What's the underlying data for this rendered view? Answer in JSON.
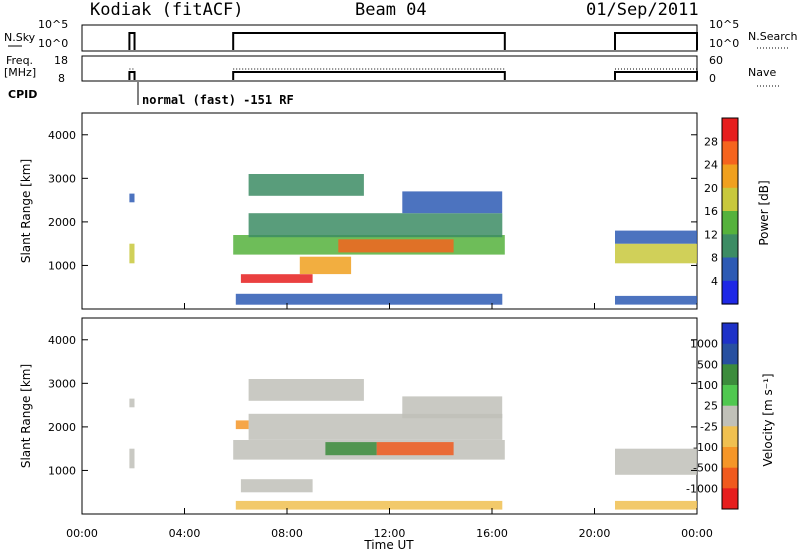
{
  "header": {
    "station": "Kodiak (fitACF)",
    "beam": "Beam 04",
    "date": "01/Sep/2011"
  },
  "panels": {
    "nsky": {
      "left_label": "N.Sky",
      "left_top": "10^5",
      "left_bottom": "10^0",
      "right_top": "10^5",
      "right_bottom": "10^0",
      "right_label": "N.Search"
    },
    "freq": {
      "left_label_1": "Freq.",
      "left_label_2": "[MHz]",
      "left_top": "18",
      "left_bottom": "8",
      "right_top": "60",
      "right_bottom": "0",
      "right_label": "Nave"
    },
    "cpid": {
      "label": "CPID",
      "mode": "normal (fast) -151 RF"
    }
  },
  "chart_data": [
    {
      "type": "heatmap",
      "name": "power",
      "ylabel": "Slant Range [km]",
      "xlabel": "",
      "ylim": [
        0,
        4500
      ],
      "yticks": [
        "1000",
        "2000",
        "3000",
        "4000"
      ],
      "x_hours": [
        0,
        24
      ],
      "colorbar_label": "Power [dB]",
      "colorbar_ticks": [
        "4",
        "8",
        "12",
        "16",
        "20",
        "24",
        "28"
      ],
      "colors": [
        "#1e28e6",
        "#2d5ab4",
        "#3c8c64",
        "#55b23c",
        "#c8c83c",
        "#f0a01e",
        "#f5641e",
        "#e61e1e"
      ],
      "features": [
        {
          "t0": 1.85,
          "t1": 2.05,
          "r0": 1050,
          "r1": 1500,
          "level": 4
        },
        {
          "t0": 1.85,
          "t1": 2.05,
          "r0": 2450,
          "r1": 2650,
          "level": 1
        },
        {
          "t0": 5.9,
          "t1": 16.5,
          "r0": 1250,
          "r1": 1700,
          "level": 3
        },
        {
          "t0": 6.2,
          "t1": 9.0,
          "r0": 600,
          "r1": 800,
          "level": 7
        },
        {
          "t0": 8.5,
          "t1": 10.5,
          "r0": 800,
          "r1": 1200,
          "level": 5
        },
        {
          "t0": 10.0,
          "t1": 14.5,
          "r0": 1300,
          "r1": 1600,
          "level": 6
        },
        {
          "t0": 6.5,
          "t1": 16.4,
          "r0": 1650,
          "r1": 2200,
          "level": 2
        },
        {
          "t0": 6.5,
          "t1": 11.0,
          "r0": 2600,
          "r1": 3100,
          "level": 2
        },
        {
          "t0": 12.5,
          "t1": 16.4,
          "r0": 2200,
          "r1": 2700,
          "level": 1
        },
        {
          "t0": 20.8,
          "t1": 24.0,
          "r0": 1050,
          "r1": 1500,
          "level": 4
        },
        {
          "t0": 20.8,
          "t1": 24.0,
          "r0": 1500,
          "r1": 1800,
          "level": 1
        },
        {
          "t0": 6.0,
          "t1": 16.4,
          "r0": 100,
          "r1": 350,
          "level": 1
        },
        {
          "t0": 20.8,
          "t1": 24.0,
          "r0": 100,
          "r1": 300,
          "level": 1
        }
      ]
    },
    {
      "type": "heatmap",
      "name": "velocity",
      "ylabel": "Slant Range [km]",
      "xlabel": "Time UT",
      "ylim": [
        0,
        4500
      ],
      "yticks": [
        "1000",
        "2000",
        "3000",
        "4000"
      ],
      "xticks": [
        "00:00",
        "04:00",
        "08:00",
        "12:00",
        "16:00",
        "20:00",
        "00:00"
      ],
      "x_hours": [
        0,
        24
      ],
      "colorbar_label": "Velocity [m s⁻¹]",
      "colorbar_ticks": [
        "1000",
        "500",
        "100",
        "25",
        "-25",
        "-100",
        "-500",
        "-1000"
      ],
      "colors": [
        "#1e32c8",
        "#2850a0",
        "#3c8c3c",
        "#50c850",
        "#c0c0b8",
        "#f0c050",
        "#f59628",
        "#f05a1e",
        "#e61e1e"
      ],
      "features": [
        {
          "t0": 1.85,
          "t1": 2.05,
          "r0": 1050,
          "r1": 1500,
          "level": 4
        },
        {
          "t0": 1.85,
          "t1": 2.05,
          "r0": 2450,
          "r1": 2650,
          "level": 4
        },
        {
          "t0": 5.9,
          "t1": 16.5,
          "r0": 1250,
          "r1": 1700,
          "level": 4
        },
        {
          "t0": 6.2,
          "t1": 9.0,
          "r0": 500,
          "r1": 800,
          "level": 4
        },
        {
          "t0": 6.5,
          "t1": 16.4,
          "r0": 1700,
          "r1": 2300,
          "level": 4
        },
        {
          "t0": 6.5,
          "t1": 11.0,
          "r0": 2600,
          "r1": 3100,
          "level": 4
        },
        {
          "t0": 12.5,
          "t1": 16.4,
          "r0": 2200,
          "r1": 2700,
          "level": 4
        },
        {
          "t0": 9.5,
          "t1": 11.5,
          "r0": 1350,
          "r1": 1650,
          "level": 2
        },
        {
          "t0": 11.5,
          "t1": 14.5,
          "r0": 1350,
          "r1": 1650,
          "level": 7
        },
        {
          "t0": 6.0,
          "t1": 6.5,
          "r0": 1950,
          "r1": 2150,
          "level": 6
        },
        {
          "t0": 20.8,
          "t1": 24.0,
          "r0": 900,
          "r1": 1500,
          "level": 4
        },
        {
          "t0": 6.0,
          "t1": 16.4,
          "r0": 100,
          "r1": 300,
          "level": 5
        },
        {
          "t0": 20.8,
          "t1": 24.0,
          "r0": 100,
          "r1": 300,
          "level": 5
        }
      ]
    }
  ]
}
